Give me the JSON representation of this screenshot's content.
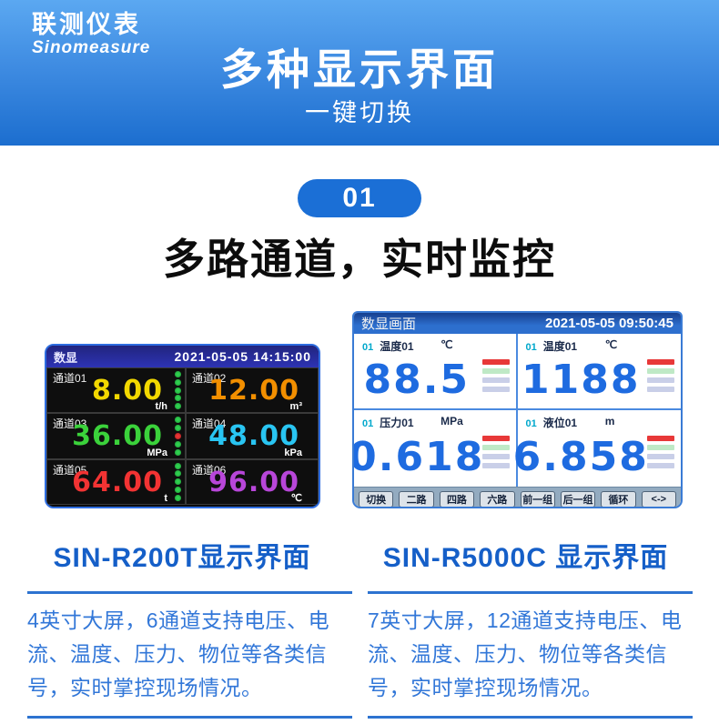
{
  "brand": {
    "logo_cn": "联测仪表",
    "logo_en": "Sinomeasure"
  },
  "header": {
    "title": "多种显示界面",
    "subtitle": "一键切换"
  },
  "section": {
    "badge": "01",
    "title": "多路通道，实时监控"
  },
  "left_screen": {
    "title": "数显",
    "datetime": "2021-05-05 14:15:00",
    "caption": "SIN-R200T显示界面",
    "description": "4英寸大屏，6通道支持电压、电流、温度、压力、物位等各类信号，实时掌控现场情况。",
    "channels": [
      {
        "label": "通道01",
        "value": "8.00",
        "unit": "t/h",
        "color": "#f2d800"
      },
      {
        "label": "通道02",
        "value": "12.00",
        "unit": "m³",
        "color": "#f28f00"
      },
      {
        "label": "通道03",
        "value": "36.00",
        "unit": "MPa",
        "color": "#3bd23b"
      },
      {
        "label": "通道04",
        "value": "48.00",
        "unit": "kPa",
        "color": "#29c5f2"
      },
      {
        "label": "通道05",
        "value": "64.00",
        "unit": "t",
        "color": "#f23333"
      },
      {
        "label": "通道06",
        "value": "96.00",
        "unit": "℃",
        "color": "#b846d9"
      }
    ]
  },
  "right_screen": {
    "title": "数显画面",
    "datetime": "2021-05-05 09:50:45",
    "caption": "SIN-R5000C 显示界面",
    "description": "7英寸大屏，12通道支持电压、电流、温度、压力、物位等各类信号，实时掌控现场情况。",
    "value_color": "#1e6be0",
    "indicator_colors": [
      "#e83838",
      "#bfe9c6",
      "#c9cfe8",
      "#c9cfe8"
    ],
    "channels": [
      {
        "num": "01",
        "label": "温度01",
        "unit": "℃",
        "value": "88.5"
      },
      {
        "num": "01",
        "label": "温度01",
        "unit": "℃",
        "value": "1188"
      },
      {
        "num": "01",
        "label": "压力01",
        "unit": "MPa",
        "value": "0.618"
      },
      {
        "num": "01",
        "label": "液位01",
        "unit": "m",
        "value": "6.858"
      }
    ],
    "buttons": [
      "切换",
      "二路",
      "四路",
      "六路",
      "前一组",
      "后一组",
      "循环",
      "<->"
    ]
  }
}
